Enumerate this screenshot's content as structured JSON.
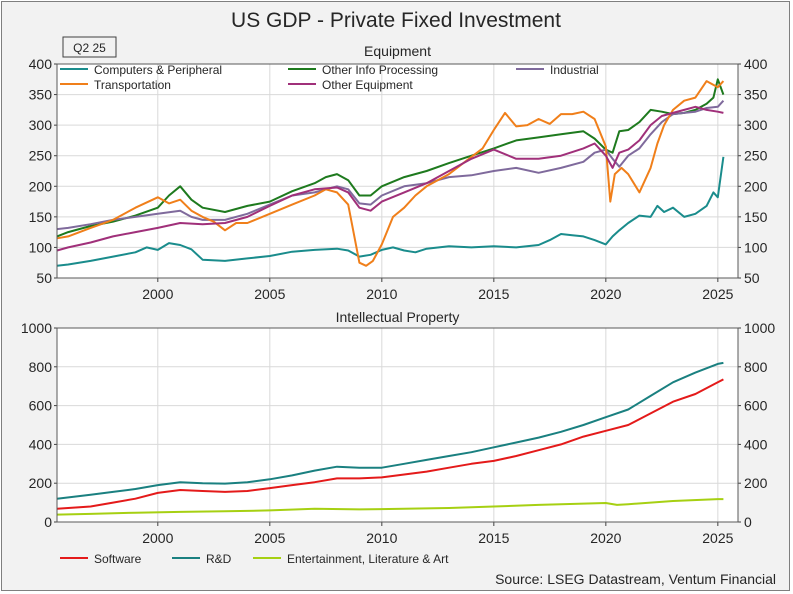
{
  "title": "US GDP - Private Fixed Investment",
  "period_badge": "Q2 25",
  "source": "Source: LSEG Datastream, Ventum Financial",
  "chart_data": [
    {
      "type": "line",
      "title": "Equipment",
      "xlim": [
        1995.5,
        2025.9
      ],
      "ylim": [
        50,
        400
      ],
      "yticks": [
        50,
        100,
        150,
        200,
        250,
        300,
        350,
        400
      ],
      "xticks": [
        2000,
        2005,
        2010,
        2015,
        2020,
        2025
      ],
      "grid": true,
      "legend_position": "top",
      "series": [
        {
          "name": "Computers & Peripheral",
          "color": "#1a8c8c",
          "x": [
            1995.5,
            1996,
            1997,
            1998,
            1999,
            1999.5,
            2000,
            2000.5,
            2001,
            2001.5,
            2002,
            2003,
            2004,
            2005,
            2006,
            2007,
            2008,
            2008.5,
            2009,
            2009.5,
            2010,
            2010.5,
            2011,
            2011.5,
            2012,
            2013,
            2014,
            2015,
            2016,
            2017,
            2017.5,
            2018,
            2018.5,
            2019,
            2019.5,
            2020,
            2020.3,
            2020.6,
            2021,
            2021.5,
            2022,
            2022.3,
            2022.6,
            2023,
            2023.5,
            2024,
            2024.5,
            2024.8,
            2025,
            2025.25
          ],
          "y": [
            70,
            72,
            78,
            85,
            92,
            100,
            96,
            107,
            104,
            97,
            80,
            78,
            82,
            86,
            93,
            96,
            98,
            95,
            85,
            88,
            96,
            100,
            95,
            92,
            98,
            102,
            100,
            102,
            100,
            104,
            112,
            122,
            120,
            118,
            112,
            105,
            118,
            128,
            140,
            152,
            150,
            168,
            158,
            165,
            150,
            155,
            168,
            190,
            182,
            248
          ]
        },
        {
          "name": "Other Info Processing",
          "color": "#1e7a1e",
          "x": [
            1995.5,
            1996,
            1997,
            1998,
            1999,
            2000,
            2000.5,
            2001,
            2001.5,
            2002,
            2003,
            2004,
            2005,
            2006,
            2007,
            2007.5,
            2008,
            2008.5,
            2009,
            2009.5,
            2010,
            2011,
            2012,
            2013,
            2014,
            2015,
            2016,
            2017,
            2018,
            2019,
            2019.5,
            2020,
            2020.3,
            2020.6,
            2021,
            2021.5,
            2022,
            2022.5,
            2023,
            2023.5,
            2024,
            2024.5,
            2024.8,
            2025,
            2025.25
          ],
          "y": [
            118,
            125,
            135,
            142,
            152,
            165,
            185,
            200,
            178,
            165,
            158,
            168,
            175,
            192,
            205,
            215,
            220,
            210,
            185,
            185,
            200,
            215,
            225,
            238,
            250,
            262,
            275,
            280,
            285,
            290,
            278,
            260,
            255,
            290,
            292,
            305,
            325,
            322,
            318,
            320,
            325,
            335,
            345,
            375,
            350
          ]
        },
        {
          "name": "Industrial",
          "color": "#7f6a9c",
          "x": [
            1995.5,
            1996,
            1997,
            1998,
            1999,
            2000,
            2001,
            2001.5,
            2002,
            2003,
            2004,
            2005,
            2006,
            2007,
            2008,
            2008.5,
            2009,
            2009.5,
            2010,
            2011,
            2012,
            2013,
            2014,
            2015,
            2016,
            2017,
            2018,
            2019,
            2019.5,
            2020,
            2020.3,
            2020.6,
            2021,
            2021.5,
            2022,
            2022.5,
            2023,
            2023.5,
            2024,
            2024.5,
            2025,
            2025.25
          ],
          "y": [
            130,
            132,
            138,
            145,
            150,
            155,
            160,
            150,
            145,
            145,
            155,
            170,
            185,
            190,
            200,
            195,
            172,
            170,
            185,
            200,
            205,
            215,
            218,
            225,
            230,
            222,
            230,
            240,
            255,
            260,
            245,
            232,
            250,
            262,
            285,
            305,
            318,
            320,
            322,
            328,
            330,
            340
          ]
        },
        {
          "name": "Transportation",
          "color": "#f07f1a",
          "x": [
            1995.5,
            1996,
            1997,
            1998,
            1999,
            2000,
            2000.5,
            2001,
            2001.5,
            2002,
            2002.5,
            2003,
            2003.5,
            2004,
            2005,
            2006,
            2007,
            2007.5,
            2008,
            2008.5,
            2009,
            2009.3,
            2009.6,
            2010,
            2010.5,
            2011,
            2011.5,
            2012,
            2013,
            2014,
            2014.5,
            2015,
            2015.5,
            2016,
            2016.5,
            2017,
            2017.5,
            2018,
            2018.5,
            2019,
            2019.5,
            2020,
            2020.2,
            2020.4,
            2020.7,
            2021,
            2021.5,
            2022,
            2022.3,
            2022.6,
            2023,
            2023.5,
            2024,
            2024.5,
            2025,
            2025.25
          ],
          "y": [
            115,
            118,
            132,
            145,
            165,
            182,
            172,
            178,
            160,
            150,
            142,
            128,
            140,
            140,
            155,
            170,
            185,
            195,
            190,
            170,
            75,
            70,
            78,
            105,
            150,
            165,
            185,
            200,
            220,
            248,
            262,
            292,
            320,
            298,
            300,
            310,
            302,
            318,
            318,
            322,
            310,
            265,
            175,
            220,
            230,
            220,
            190,
            230,
            270,
            300,
            325,
            340,
            345,
            372,
            362,
            372
          ]
        },
        {
          "name": "Other Equipment",
          "color": "#a0307a",
          "x": [
            1995.5,
            1996,
            1997,
            1998,
            1999,
            2000,
            2001,
            2002,
            2003,
            2004,
            2005,
            2006,
            2007,
            2008,
            2008.5,
            2009,
            2009.5,
            2010,
            2011,
            2012,
            2013,
            2014,
            2015,
            2016,
            2017,
            2018,
            2019,
            2019.5,
            2020,
            2020.3,
            2020.6,
            2021,
            2021.5,
            2022,
            2022.5,
            2023,
            2023.5,
            2024,
            2024.5,
            2025,
            2025.25
          ],
          "y": [
            95,
            100,
            108,
            118,
            125,
            132,
            140,
            138,
            140,
            150,
            168,
            185,
            195,
            198,
            190,
            165,
            160,
            175,
            190,
            205,
            225,
            245,
            260,
            245,
            245,
            250,
            262,
            270,
            250,
            230,
            255,
            260,
            275,
            300,
            315,
            320,
            325,
            330,
            325,
            322,
            320
          ]
        }
      ]
    },
    {
      "type": "line",
      "title": "Intellectual Property",
      "xlim": [
        1995.5,
        2025.9
      ],
      "ylim": [
        0,
        1000
      ],
      "yticks": [
        0,
        200,
        400,
        600,
        800,
        1000
      ],
      "xticks": [
        2000,
        2005,
        2010,
        2015,
        2020,
        2025
      ],
      "grid": true,
      "legend_position": "bottom",
      "series": [
        {
          "name": "Software",
          "color": "#e41a1a",
          "x": [
            1995.5,
            1997,
            1998,
            1999,
            2000,
            2001,
            2002,
            2003,
            2004,
            2005,
            2006,
            2007,
            2008,
            2009,
            2010,
            2011,
            2012,
            2013,
            2014,
            2015,
            2016,
            2017,
            2018,
            2019,
            2020,
            2021,
            2022,
            2023,
            2024,
            2025,
            2025.25
          ],
          "y": [
            68,
            80,
            100,
            120,
            150,
            165,
            160,
            155,
            160,
            175,
            190,
            205,
            225,
            225,
            230,
            245,
            260,
            280,
            300,
            315,
            340,
            370,
            400,
            440,
            470,
            500,
            560,
            620,
            660,
            720,
            735
          ]
        },
        {
          "name": "R&D",
          "color": "#1a8080",
          "x": [
            1995.5,
            1997,
            1998,
            1999,
            2000,
            2001,
            2002,
            2003,
            2004,
            2005,
            2006,
            2007,
            2008,
            2009,
            2010,
            2011,
            2012,
            2013,
            2014,
            2015,
            2016,
            2017,
            2018,
            2019,
            2020,
            2021,
            2022,
            2023,
            2024,
            2025,
            2025.25
          ],
          "y": [
            120,
            140,
            155,
            170,
            190,
            205,
            200,
            198,
            205,
            220,
            240,
            265,
            285,
            280,
            280,
            300,
            320,
            340,
            360,
            385,
            410,
            435,
            465,
            500,
            540,
            580,
            650,
            720,
            770,
            815,
            820
          ]
        },
        {
          "name": "Entertainment, Literature & Art",
          "color": "#a6d012",
          "x": [
            1995.5,
            1997,
            1999,
            2001,
            2003,
            2005,
            2007,
            2009,
            2011,
            2013,
            2015,
            2017,
            2019,
            2020,
            2020.5,
            2021,
            2023,
            2025,
            2025.25
          ],
          "y": [
            38,
            42,
            48,
            52,
            55,
            60,
            68,
            65,
            68,
            72,
            80,
            88,
            95,
            98,
            88,
            92,
            108,
            118,
            118
          ]
        }
      ]
    }
  ]
}
